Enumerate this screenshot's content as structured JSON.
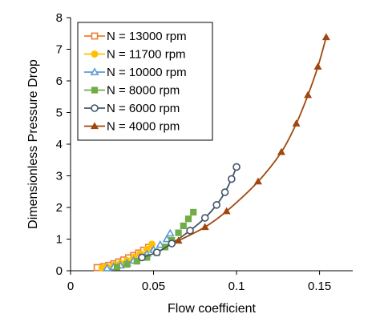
{
  "chart_data": {
    "type": "scatter",
    "xlabel": "Flow coefficient",
    "ylabel": "Dimensionless Pressure Drop",
    "xlim": [
      0,
      0.17
    ],
    "ylim": [
      0,
      8
    ],
    "xticks": [
      0,
      0.05,
      0.1,
      0.15
    ],
    "xtick_labels": [
      "0",
      "0.05",
      "0.1",
      "0.15"
    ],
    "yticks": [
      0,
      1,
      2,
      3,
      4,
      5,
      6,
      7,
      8
    ],
    "ytick_labels": [
      "0",
      "1",
      "2",
      "3",
      "4",
      "5",
      "6",
      "7",
      "8"
    ],
    "grid": false,
    "legend_position": "top-left",
    "series": [
      {
        "name": "N = 13000 rpm",
        "color": "#ED7D31",
        "marker": "square-open",
        "line": false,
        "x": [
          0.016,
          0.02,
          0.023,
          0.026,
          0.029,
          0.032,
          0.035,
          0.038,
          0.041,
          0.044,
          0.047
        ],
        "y": [
          0.1,
          0.13,
          0.17,
          0.22,
          0.28,
          0.34,
          0.41,
          0.48,
          0.56,
          0.65,
          0.74
        ]
      },
      {
        "name": "N = 11700 rpm",
        "color": "#FFC000",
        "marker": "circle-filled",
        "line": false,
        "x": [
          0.019,
          0.022,
          0.026,
          0.03,
          0.034,
          0.038,
          0.042,
          0.046,
          0.049
        ],
        "y": [
          0.09,
          0.12,
          0.17,
          0.24,
          0.32,
          0.42,
          0.54,
          0.68,
          0.84
        ]
      },
      {
        "name": "N = 10000 rpm",
        "color": "#5B9BD5",
        "marker": "triangle-open",
        "line": false,
        "x": [
          0.022,
          0.026,
          0.03,
          0.034,
          0.038,
          0.042,
          0.046,
          0.05,
          0.054,
          0.058,
          0.06
        ],
        "y": [
          0.08,
          0.12,
          0.17,
          0.24,
          0.32,
          0.42,
          0.53,
          0.66,
          0.82,
          1.0,
          1.18
        ]
      },
      {
        "name": "N = 8000 rpm",
        "color": "#70AD47",
        "marker": "square-filled",
        "line": false,
        "x": [
          0.028,
          0.034,
          0.04,
          0.046,
          0.052,
          0.057,
          0.061,
          0.065,
          0.068,
          0.071,
          0.074
        ],
        "y": [
          0.12,
          0.2,
          0.3,
          0.42,
          0.57,
          0.75,
          0.96,
          1.2,
          1.42,
          1.64,
          1.85
        ]
      },
      {
        "name": "N = 6000 rpm",
        "color": "#44546A",
        "marker": "circle-open",
        "line": true,
        "x": [
          0.043,
          0.052,
          0.061,
          0.072,
          0.081,
          0.088,
          0.093,
          0.097,
          0.1
        ],
        "y": [
          0.42,
          0.58,
          0.86,
          1.27,
          1.67,
          2.08,
          2.48,
          2.9,
          3.28
        ]
      },
      {
        "name": "N = 4000 rpm",
        "color": "#A0470E",
        "marker": "triangle-filled",
        "line": true,
        "x": [
          0.065,
          0.081,
          0.094,
          0.113,
          0.127,
          0.136,
          0.143,
          0.149,
          0.154
        ],
        "y": [
          0.95,
          1.38,
          1.88,
          2.82,
          3.75,
          4.65,
          5.55,
          6.45,
          7.38
        ]
      }
    ]
  }
}
